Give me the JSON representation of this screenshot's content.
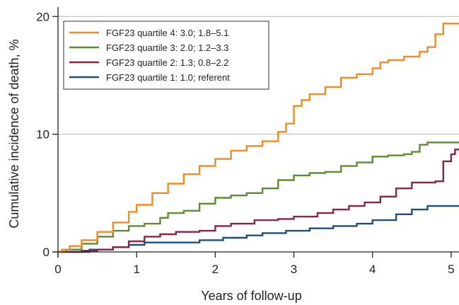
{
  "chart_data": {
    "type": "line",
    "step": true,
    "xlabel": "Years of follow-up",
    "ylabel": "Cumulative incidence of death, %",
    "xlim": [
      0,
      5.1
    ],
    "ylim": [
      0,
      20.8
    ],
    "xticks": [
      0,
      1,
      2,
      3,
      4,
      5
    ],
    "yticks": [
      0,
      10,
      20
    ],
    "grid_y": true,
    "legend_position": "top-left",
    "series": [
      {
        "name": "FGF23 quartile 4: 3.0; 1.8–5.1",
        "color": "#F08A24",
        "points": [
          [
            0,
            0
          ],
          [
            0.05,
            0.2
          ],
          [
            0.15,
            0.5
          ],
          [
            0.3,
            1.0
          ],
          [
            0.5,
            1.7
          ],
          [
            0.7,
            2.5
          ],
          [
            0.9,
            3.4
          ],
          [
            1.0,
            4.0
          ],
          [
            1.2,
            5.0
          ],
          [
            1.4,
            5.8
          ],
          [
            1.6,
            6.6
          ],
          [
            1.8,
            7.3
          ],
          [
            2.0,
            7.9
          ],
          [
            2.2,
            8.6
          ],
          [
            2.4,
            9.0
          ],
          [
            2.6,
            9.4
          ],
          [
            2.8,
            10.2
          ],
          [
            2.9,
            10.9
          ],
          [
            3.0,
            12.4
          ],
          [
            3.1,
            12.9
          ],
          [
            3.2,
            13.4
          ],
          [
            3.4,
            14.0
          ],
          [
            3.6,
            14.8
          ],
          [
            3.8,
            15.1
          ],
          [
            4.0,
            15.6
          ],
          [
            4.1,
            16.1
          ],
          [
            4.2,
            16.3
          ],
          [
            4.4,
            16.6
          ],
          [
            4.6,
            17.0
          ],
          [
            4.7,
            17.4
          ],
          [
            4.8,
            18.5
          ],
          [
            4.9,
            19.4
          ],
          [
            5.1,
            19.4
          ]
        ]
      },
      {
        "name": "FGF23 quartile 3: 2.0; 1.2–3.3",
        "color": "#5E8C32",
        "points": [
          [
            0,
            0
          ],
          [
            0.1,
            0.2
          ],
          [
            0.3,
            0.7
          ],
          [
            0.5,
            1.3
          ],
          [
            0.7,
            1.8
          ],
          [
            0.9,
            2.2
          ],
          [
            1.1,
            2.4
          ],
          [
            1.3,
            2.9
          ],
          [
            1.4,
            3.3
          ],
          [
            1.6,
            3.5
          ],
          [
            1.8,
            4.1
          ],
          [
            2.0,
            4.6
          ],
          [
            2.2,
            4.8
          ],
          [
            2.4,
            5.0
          ],
          [
            2.6,
            5.4
          ],
          [
            2.8,
            6.1
          ],
          [
            3.0,
            6.5
          ],
          [
            3.2,
            6.7
          ],
          [
            3.4,
            6.8
          ],
          [
            3.6,
            7.3
          ],
          [
            3.8,
            7.6
          ],
          [
            4.0,
            8.1
          ],
          [
            4.2,
            8.2
          ],
          [
            4.4,
            8.3
          ],
          [
            4.5,
            8.5
          ],
          [
            4.6,
            9.1
          ],
          [
            4.7,
            9.3
          ],
          [
            5.1,
            9.3
          ]
        ]
      },
      {
        "name": "FGF23 quartile 2: 1.3; 0.8–2.2",
        "color": "#8B2346",
        "points": [
          [
            0,
            0
          ],
          [
            0.3,
            0.1
          ],
          [
            0.5,
            0.2
          ],
          [
            0.7,
            0.4
          ],
          [
            0.9,
            0.9
          ],
          [
            1.1,
            1.3
          ],
          [
            1.3,
            1.5
          ],
          [
            1.5,
            1.7
          ],
          [
            1.8,
            1.8
          ],
          [
            2.0,
            2.2
          ],
          [
            2.2,
            2.4
          ],
          [
            2.5,
            2.7
          ],
          [
            2.8,
            2.8
          ],
          [
            3.0,
            3.0
          ],
          [
            3.3,
            3.3
          ],
          [
            3.5,
            3.6
          ],
          [
            3.7,
            3.9
          ],
          [
            3.9,
            4.2
          ],
          [
            4.1,
            4.7
          ],
          [
            4.3,
            5.4
          ],
          [
            4.5,
            5.9
          ],
          [
            4.8,
            6.0
          ],
          [
            4.9,
            7.7
          ],
          [
            5.0,
            8.3
          ],
          [
            5.05,
            8.7
          ],
          [
            5.1,
            8.8
          ]
        ]
      },
      {
        "name": "FGF23 quartile 1: 1.0; referent",
        "color": "#1F4E79",
        "points": [
          [
            0,
            0
          ],
          [
            0.4,
            0.2
          ],
          [
            0.7,
            0.4
          ],
          [
            0.9,
            0.6
          ],
          [
            1.1,
            0.8
          ],
          [
            1.7,
            0.8
          ],
          [
            1.8,
            1.0
          ],
          [
            2.1,
            1.2
          ],
          [
            2.4,
            1.4
          ],
          [
            2.6,
            1.6
          ],
          [
            2.9,
            1.8
          ],
          [
            3.2,
            2.0
          ],
          [
            3.5,
            2.2
          ],
          [
            3.8,
            2.4
          ],
          [
            4.0,
            2.7
          ],
          [
            4.3,
            3.2
          ],
          [
            4.5,
            3.6
          ],
          [
            4.7,
            3.9
          ],
          [
            5.1,
            3.9
          ]
        ]
      }
    ]
  }
}
